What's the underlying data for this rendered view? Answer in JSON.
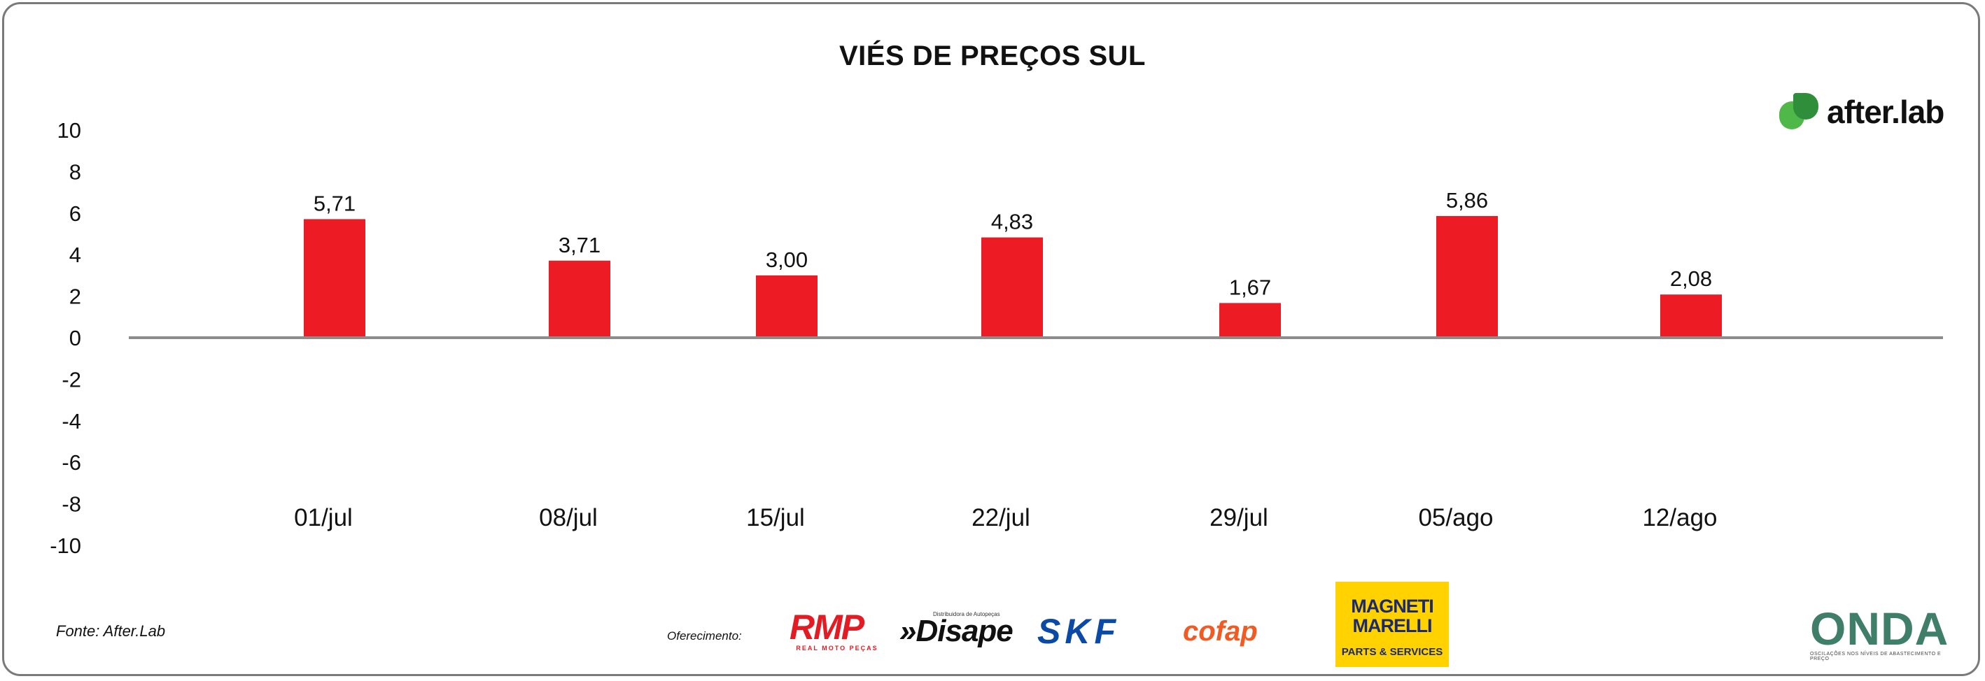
{
  "chart_data": {
    "type": "bar",
    "title": "VIÉS DE PREÇOS SUL",
    "xlabel": "",
    "ylabel": "",
    "categories": [
      "01/jul",
      "08/jul",
      "15/jul",
      "22/jul",
      "29/jul",
      "05/ago",
      "12/ago"
    ],
    "values": [
      5.71,
      3.71,
      3.0,
      4.83,
      1.67,
      5.86,
      2.08
    ],
    "data_labels": [
      "5,71",
      "3,71",
      "3,00",
      "4,83",
      "1,67",
      "5,86",
      "2,08"
    ],
    "ylim": [
      -10,
      10
    ],
    "yticks": [
      10,
      8,
      6,
      4,
      2,
      0,
      -2,
      -4,
      -6,
      -8,
      -10
    ],
    "grid": false,
    "legend": "none",
    "bar_color": "#ed1c24",
    "axis_color": "#8c8c8c"
  },
  "source": "Fonte: After.Lab",
  "sponsor_label": "Oferecimento:",
  "logos": {
    "afterlab": "after.lab",
    "rmp": "RMP",
    "rmp_sub": "REAL MOTO PEÇAS",
    "disape_small": "Distribuidora de Autopeças",
    "disape": "»Disape",
    "skf": "SKF",
    "cofap": "cofap",
    "magneti_1": "MAGNETI",
    "magneti_2": "MARELLI",
    "magneti_3": "PARTS & SERVICES",
    "onda": "ONDA",
    "onda_sub": "OSCILAÇÕES NOS NÍVEIS DE ABASTECIMENTO E PREÇO"
  }
}
